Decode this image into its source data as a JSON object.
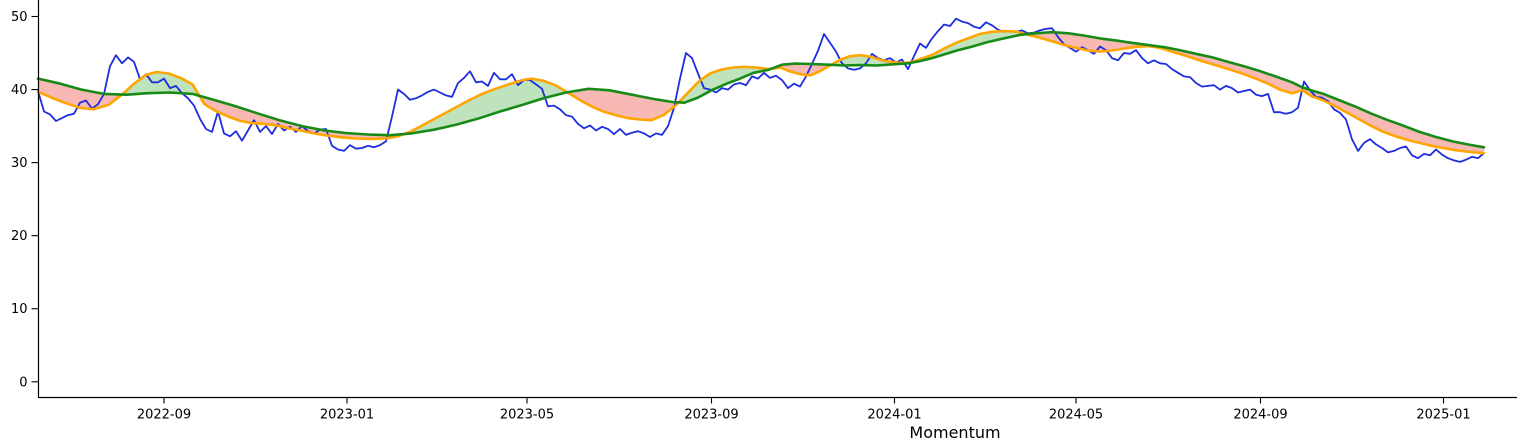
{
  "figure": {
    "background": "#ffffff",
    "xlabel": "Momentum",
    "x_tick_labels": [
      "2022-09",
      "2023-01",
      "2023-05",
      "2023-09",
      "2024-01",
      "2024-05",
      "2024-09",
      "2025-01"
    ],
    "y_tick_labels": [
      "0",
      "10",
      "20",
      "30",
      "40",
      "50"
    ]
  },
  "chart_data": {
    "type": "line",
    "title": "",
    "xlabel": "Momentum",
    "ylabel": "",
    "grid": false,
    "legend": null,
    "x_unit": "days since 2022-06-09",
    "xlim_days": [
      0,
      986
    ],
    "ylim": [
      -2.1,
      52.3
    ],
    "y_ticks": [
      0,
      10,
      20,
      30,
      40,
      50
    ],
    "x_ticks": [
      {
        "label": "2022-09",
        "day": 84
      },
      {
        "label": "2023-01",
        "day": 206
      },
      {
        "label": "2023-05",
        "day": 326
      },
      {
        "label": "2023-09",
        "day": 449
      },
      {
        "label": "2024-01",
        "day": 571
      },
      {
        "label": "2024-05",
        "day": 692
      },
      {
        "label": "2024-09",
        "day": 815
      },
      {
        "label": "2025-01",
        "day": 937
      }
    ],
    "colors": {
      "price": "#1c2ede",
      "ma_fast": "#ffa500",
      "ma_slow": "#178a17",
      "fill_fast_above": "#bfe3bd",
      "fill_fast_below": "#f8b8b4",
      "axis": "#000000",
      "text": "#000000"
    },
    "fills": {
      "between": [
        "ma_fast",
        "ma_slow"
      ],
      "above_color": "#bfe3bd",
      "below_color": "#f8b8b4"
    },
    "series": [
      {
        "name": "price",
        "color": "#1c2ede",
        "width": 1.8,
        "sampling": {
          "x0_day": 0,
          "dx_days": 4
        },
        "values": [
          39.8,
          37.0,
          36.6,
          35.7,
          36.1,
          36.5,
          36.7,
          38.2,
          38.5,
          37.4,
          38.0,
          39.4,
          43.2,
          44.7,
          43.6,
          44.4,
          43.8,
          41.4,
          42.1,
          41.0,
          41.0,
          41.5,
          40.2,
          40.5,
          39.5,
          38.8,
          37.8,
          36.0,
          34.6,
          34.2,
          37.0,
          34.0,
          33.6,
          34.3,
          33.0,
          34.4,
          35.8,
          34.2,
          35.0,
          33.9,
          35.3,
          34.4,
          34.9,
          34.2,
          35.0,
          34.3,
          34.0,
          34.5,
          34.6,
          32.3,
          31.8,
          31.6,
          32.4,
          31.9,
          32.0,
          32.3,
          32.1,
          32.4,
          32.9,
          36.3,
          40.0,
          39.4,
          38.6,
          38.8,
          39.2,
          39.7,
          40.0,
          39.6,
          39.2,
          39.0,
          40.9,
          41.6,
          42.5,
          41.0,
          41.1,
          40.5,
          42.3,
          41.4,
          41.4,
          42.1,
          40.6,
          41.3,
          41.3,
          40.7,
          40.1,
          37.7,
          37.8,
          37.3,
          36.5,
          36.3,
          35.3,
          34.7,
          35.1,
          34.4,
          34.9,
          34.6,
          33.9,
          34.6,
          33.8,
          34.1,
          34.3,
          34.0,
          33.5,
          34.0,
          33.8,
          35.0,
          37.5,
          41.5,
          45.0,
          44.3,
          42.2,
          40.2,
          40.0,
          39.6,
          40.2,
          40.0,
          40.7,
          40.9,
          40.6,
          41.8,
          41.5,
          42.3,
          41.6,
          41.9,
          41.3,
          40.2,
          40.8,
          40.4,
          41.8,
          43.5,
          45.3,
          47.6,
          46.4,
          45.2,
          43.6,
          42.9,
          42.7,
          42.9,
          43.6,
          44.9,
          44.3,
          44.0,
          44.3,
          43.7,
          44.1,
          42.8,
          44.6,
          46.3,
          45.7,
          47.0,
          48.0,
          48.9,
          48.7,
          49.7,
          49.3,
          49.1,
          48.6,
          48.4,
          49.2,
          48.8,
          48.2,
          47.9,
          48.0,
          47.9,
          48.1,
          47.7,
          47.8,
          48.1,
          48.3,
          48.4,
          47.2,
          46.2,
          45.7,
          45.2,
          45.8,
          45.4,
          44.9,
          45.9,
          45.4,
          44.3,
          44.0,
          45.0,
          44.9,
          45.4,
          44.3,
          43.6,
          44.0,
          43.6,
          43.5,
          42.8,
          42.3,
          41.8,
          41.7,
          40.9,
          40.4,
          40.5,
          40.6,
          40.0,
          40.5,
          40.2,
          39.6,
          39.8,
          40.0,
          39.3,
          39.1,
          39.4,
          36.9,
          36.9,
          36.7,
          36.9,
          37.5,
          41.1,
          39.9,
          39.0,
          38.9,
          38.4,
          37.3,
          36.8,
          35.9,
          33.2,
          31.6,
          32.7,
          33.2,
          32.5,
          32.0,
          31.4,
          31.6,
          32.0,
          32.2,
          31.0,
          30.6,
          31.2,
          31.0,
          31.8,
          31.1,
          30.6,
          30.3,
          30.1,
          30.4,
          30.8,
          30.6,
          31.3
        ]
      },
      {
        "name": "ma_fast",
        "color": "#ffa500",
        "width": 2.6,
        "points": [
          [
            0,
            39.7
          ],
          [
            9,
            38.9
          ],
          [
            19,
            38.1
          ],
          [
            28,
            37.5
          ],
          [
            37,
            37.3
          ],
          [
            47,
            37.9
          ],
          [
            56,
            39.3
          ],
          [
            64,
            40.8
          ],
          [
            72,
            42.0
          ],
          [
            79,
            42.4
          ],
          [
            87,
            42.2
          ],
          [
            95,
            41.6
          ],
          [
            103,
            40.7
          ],
          [
            111,
            38.0
          ],
          [
            119,
            37.0
          ],
          [
            127,
            36.3
          ],
          [
            135,
            35.7
          ],
          [
            143,
            35.4
          ],
          [
            151,
            35.3
          ],
          [
            159,
            35.1
          ],
          [
            167,
            34.7
          ],
          [
            175,
            34.4
          ],
          [
            184,
            34.0
          ],
          [
            193,
            33.7
          ],
          [
            203,
            33.45
          ],
          [
            212,
            33.3
          ],
          [
            221,
            33.25
          ],
          [
            231,
            33.3
          ],
          [
            240,
            33.6
          ],
          [
            249,
            34.3
          ],
          [
            259,
            35.4
          ],
          [
            268,
            36.4
          ],
          [
            277,
            37.4
          ],
          [
            287,
            38.5
          ],
          [
            296,
            39.4
          ],
          [
            305,
            40.1
          ],
          [
            315,
            40.8
          ],
          [
            323,
            41.3
          ],
          [
            329,
            41.5
          ],
          [
            337,
            41.2
          ],
          [
            345,
            40.6
          ],
          [
            353,
            39.6
          ],
          [
            361,
            38.6
          ],
          [
            369,
            37.7
          ],
          [
            377,
            37.0
          ],
          [
            385,
            36.5
          ],
          [
            393,
            36.1
          ],
          [
            401,
            35.9
          ],
          [
            409,
            35.8
          ],
          [
            417,
            36.5
          ],
          [
            425,
            37.8
          ],
          [
            433,
            39.5
          ],
          [
            441,
            41.2
          ],
          [
            448,
            42.2
          ],
          [
            455,
            42.7
          ],
          [
            463,
            43.0
          ],
          [
            471,
            43.1
          ],
          [
            479,
            43.0
          ],
          [
            487,
            42.8
          ],
          [
            495,
            43.0
          ],
          [
            501,
            42.5
          ],
          [
            508,
            42.1
          ],
          [
            515,
            41.95
          ],
          [
            521,
            42.5
          ],
          [
            528,
            43.3
          ],
          [
            535,
            44.1
          ],
          [
            541,
            44.55
          ],
          [
            548,
            44.7
          ],
          [
            555,
            44.5
          ],
          [
            561,
            44.1
          ],
          [
            568,
            43.8
          ],
          [
            575,
            43.65
          ],
          [
            581,
            43.7
          ],
          [
            588,
            44.15
          ],
          [
            596,
            44.75
          ],
          [
            604,
            45.6
          ],
          [
            612,
            46.4
          ],
          [
            620,
            47.0
          ],
          [
            628,
            47.6
          ],
          [
            636,
            47.9
          ],
          [
            644,
            48.0
          ],
          [
            652,
            47.95
          ],
          [
            660,
            47.5
          ],
          [
            668,
            47.1
          ],
          [
            676,
            46.6
          ],
          [
            684,
            46.1
          ],
          [
            692,
            45.7
          ],
          [
            700,
            45.35
          ],
          [
            708,
            45.2
          ],
          [
            716,
            45.35
          ],
          [
            724,
            45.6
          ],
          [
            732,
            45.85
          ],
          [
            740,
            45.95
          ],
          [
            748,
            45.7
          ],
          [
            756,
            45.2
          ],
          [
            764,
            44.7
          ],
          [
            772,
            44.15
          ],
          [
            780,
            43.65
          ],
          [
            788,
            43.15
          ],
          [
            796,
            42.65
          ],
          [
            804,
            42.1
          ],
          [
            812,
            41.5
          ],
          [
            820,
            40.8
          ],
          [
            828,
            40.0
          ],
          [
            836,
            39.5
          ],
          [
            843,
            39.9
          ],
          [
            849,
            39.1
          ],
          [
            857,
            38.5
          ],
          [
            865,
            37.7
          ],
          [
            873,
            36.8
          ],
          [
            881,
            35.9
          ],
          [
            889,
            35.0
          ],
          [
            897,
            34.2
          ],
          [
            905,
            33.6
          ],
          [
            913,
            33.1
          ],
          [
            921,
            32.7
          ],
          [
            929,
            32.3
          ],
          [
            937,
            32.0
          ],
          [
            945,
            31.7
          ],
          [
            953,
            31.5
          ],
          [
            961,
            31.35
          ],
          [
            964,
            31.3
          ]
        ]
      },
      {
        "name": "ma_slow",
        "color": "#178a17",
        "width": 2.6,
        "points": [
          [
            0,
            41.5
          ],
          [
            15,
            40.8
          ],
          [
            29,
            40.0
          ],
          [
            44,
            39.4
          ],
          [
            59,
            39.3
          ],
          [
            73,
            39.5
          ],
          [
            88,
            39.6
          ],
          [
            103,
            39.4
          ],
          [
            117,
            38.6
          ],
          [
            132,
            37.7
          ],
          [
            147,
            36.7
          ],
          [
            161,
            35.8
          ],
          [
            176,
            35.0
          ],
          [
            191,
            34.4
          ],
          [
            205,
            34.05
          ],
          [
            220,
            33.85
          ],
          [
            235,
            33.75
          ],
          [
            249,
            34.0
          ],
          [
            264,
            34.5
          ],
          [
            279,
            35.2
          ],
          [
            293,
            36.0
          ],
          [
            308,
            37.0
          ],
          [
            323,
            37.9
          ],
          [
            337,
            38.8
          ],
          [
            352,
            39.6
          ],
          [
            367,
            40.1
          ],
          [
            381,
            39.9
          ],
          [
            396,
            39.3
          ],
          [
            411,
            38.7
          ],
          [
            423,
            38.3
          ],
          [
            431,
            38.2
          ],
          [
            440,
            38.9
          ],
          [
            449,
            39.9
          ],
          [
            459,
            40.8
          ],
          [
            468,
            41.5
          ],
          [
            477,
            42.3
          ],
          [
            487,
            42.7
          ],
          [
            496,
            43.4
          ],
          [
            505,
            43.55
          ],
          [
            516,
            43.5
          ],
          [
            527,
            43.4
          ],
          [
            537,
            43.3
          ],
          [
            548,
            43.35
          ],
          [
            559,
            43.3
          ],
          [
            569,
            43.45
          ],
          [
            580,
            43.6
          ],
          [
            588,
            43.9
          ],
          [
            596,
            44.3
          ],
          [
            604,
            44.8
          ],
          [
            612,
            45.3
          ],
          [
            623,
            45.9
          ],
          [
            633,
            46.5
          ],
          [
            644,
            47.0
          ],
          [
            655,
            47.5
          ],
          [
            665,
            47.7
          ],
          [
            676,
            47.85
          ],
          [
            687,
            47.7
          ],
          [
            697,
            47.4
          ],
          [
            708,
            47.0
          ],
          [
            719,
            46.7
          ],
          [
            729,
            46.4
          ],
          [
            740,
            46.1
          ],
          [
            751,
            45.8
          ],
          [
            761,
            45.4
          ],
          [
            772,
            44.9
          ],
          [
            783,
            44.4
          ],
          [
            793,
            43.8
          ],
          [
            804,
            43.2
          ],
          [
            815,
            42.5
          ],
          [
            825,
            41.8
          ],
          [
            836,
            41.0
          ],
          [
            843,
            40.3
          ],
          [
            852,
            39.7
          ],
          [
            857,
            39.4
          ],
          [
            868,
            38.5
          ],
          [
            879,
            37.6
          ],
          [
            889,
            36.7
          ],
          [
            900,
            35.8
          ],
          [
            911,
            35.0
          ],
          [
            921,
            34.2
          ],
          [
            932,
            33.5
          ],
          [
            943,
            32.9
          ],
          [
            953,
            32.5
          ],
          [
            964,
            32.1
          ]
        ]
      }
    ]
  }
}
